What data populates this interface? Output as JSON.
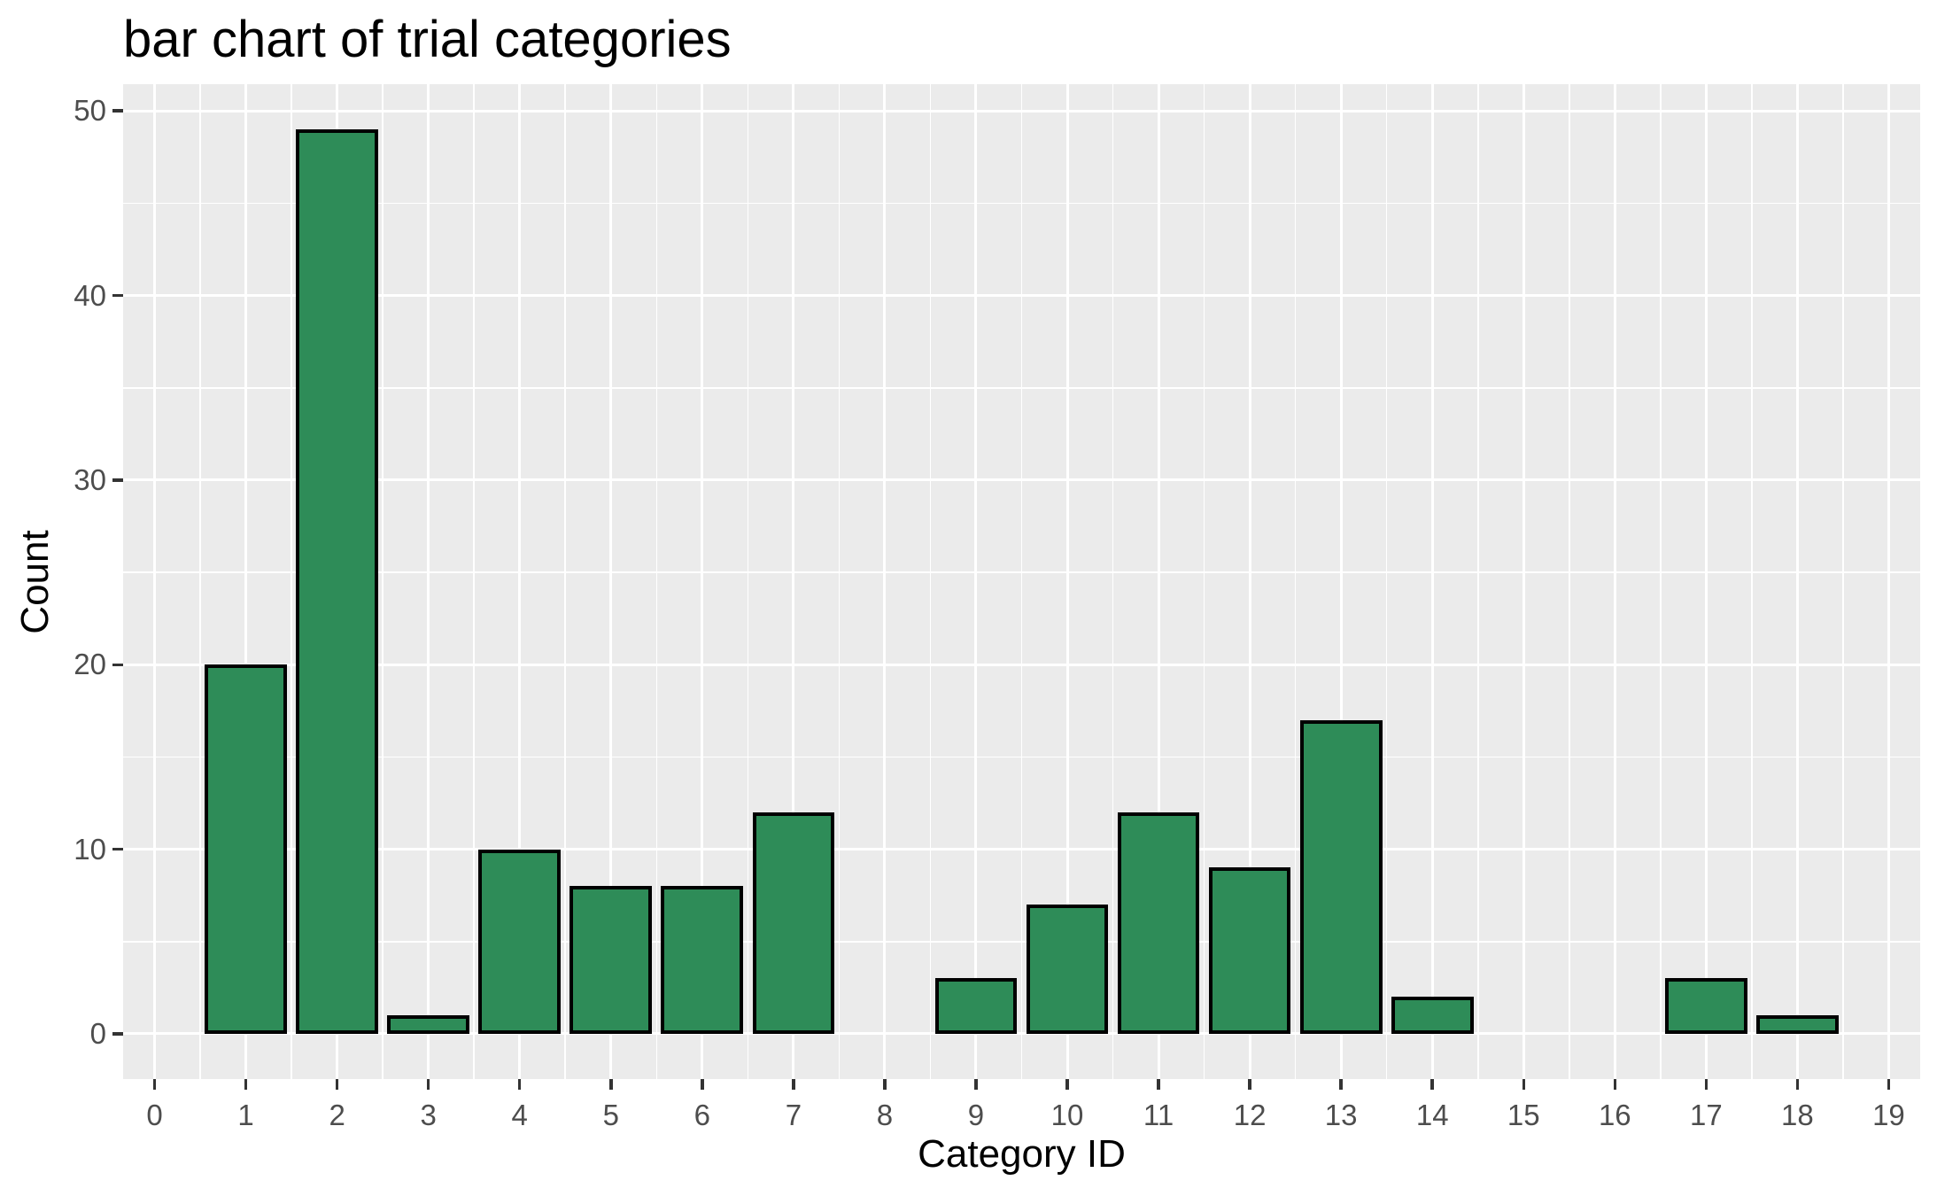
{
  "chart_data": {
    "type": "bar",
    "title": "bar chart of trial categories",
    "xlabel": "Category ID",
    "ylabel": "Count",
    "categories": [
      1,
      2,
      3,
      4,
      5,
      6,
      7,
      9,
      10,
      11,
      12,
      13,
      14,
      17,
      18
    ],
    "values": [
      20,
      49,
      1,
      10,
      8,
      8,
      12,
      3,
      7,
      12,
      9,
      17,
      2,
      3,
      1
    ],
    "bar_width": 0.9,
    "x_ticks": [
      0,
      1,
      2,
      3,
      4,
      5,
      6,
      7,
      8,
      9,
      10,
      11,
      12,
      13,
      14,
      15,
      16,
      17,
      18,
      19
    ],
    "y_ticks": [
      0,
      10,
      20,
      30,
      40,
      50
    ],
    "y_minor_ticks": [
      5,
      15,
      25,
      35,
      45
    ],
    "x_domain": [
      -0.345,
      19.345
    ],
    "y_domain": [
      -2.45,
      51.45
    ],
    "grid": true,
    "legend": "none",
    "colors": {
      "bar_fill": "#2e8c58",
      "bar_stroke": "#000000",
      "panel_background": "#ebebeb",
      "grid": "#ffffff",
      "tick_label": "#4d4d4d",
      "tick_mark": "#333333",
      "axis_title": "#000000",
      "title": "#000000",
      "figure_background": "#ffffff"
    }
  }
}
